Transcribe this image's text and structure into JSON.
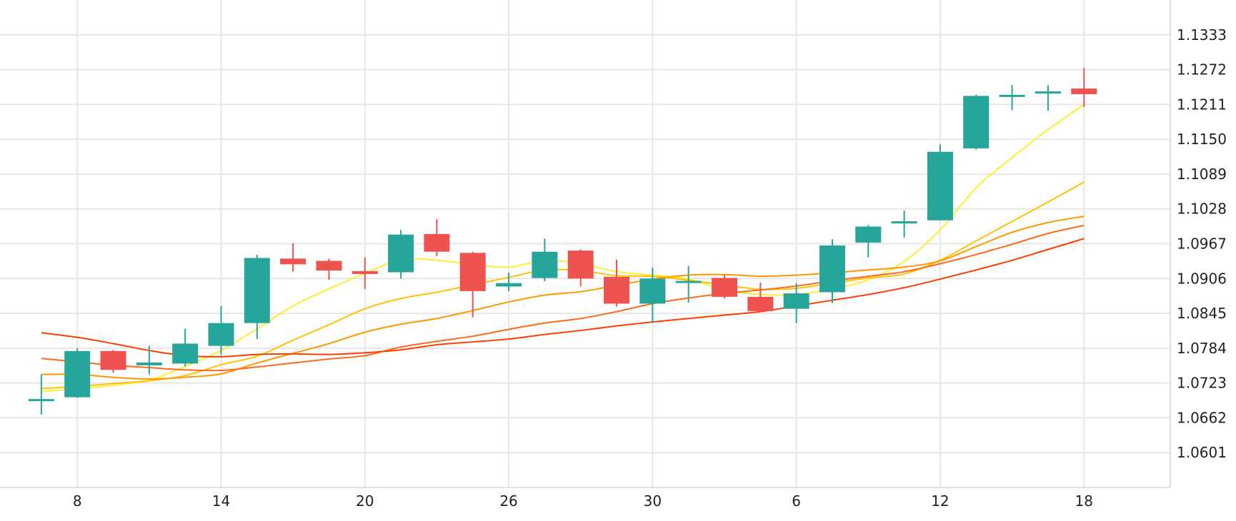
{
  "chart_data": {
    "type": "candlestick",
    "title": "",
    "xlabel": "",
    "ylabel": "",
    "grid": true,
    "legend": "none",
    "x_ticks": [
      {
        "label": "8",
        "at": 1
      },
      {
        "label": "14",
        "at": 5
      },
      {
        "label": "20",
        "at": 9
      },
      {
        "label": "26",
        "at": 13
      },
      {
        "label": "30",
        "at": 17
      },
      {
        "label": "6",
        "at": 21
      },
      {
        "label": "12",
        "at": 25
      },
      {
        "label": "18",
        "at": 29
      }
    ],
    "x_range": [
      -1.15,
      31.4
    ],
    "y_ticks": [
      "1.0601",
      "1.0662",
      "1.0723",
      "1.0784",
      "1.0845",
      "1.0906",
      "1.0967",
      "1.1028",
      "1.1089",
      "1.1150",
      "1.1211",
      "1.1272",
      "1.1333"
    ],
    "y_range": [
      1.054,
      1.1394
    ],
    "up_color": "#26a69a",
    "down_color": "#ef5350",
    "candles": [
      {
        "o": 1.0693,
        "h": 1.0738,
        "l": 1.0668,
        "c": 1.0693
      },
      {
        "o": 1.0698,
        "h": 1.0784,
        "l": 1.0697,
        "c": 1.0779
      },
      {
        "o": 1.0779,
        "h": 1.0781,
        "l": 1.0741,
        "c": 1.0746
      },
      {
        "o": 1.0754,
        "h": 1.0788,
        "l": 1.0738,
        "c": 1.0759
      },
      {
        "o": 1.0757,
        "h": 1.0818,
        "l": 1.0752,
        "c": 1.0792
      },
      {
        "o": 1.0788,
        "h": 1.0858,
        "l": 1.0772,
        "c": 1.0828
      },
      {
        "o": 1.0828,
        "h": 1.0948,
        "l": 1.08,
        "c": 1.0942
      },
      {
        "o": 1.0941,
        "h": 1.0968,
        "l": 1.0918,
        "c": 1.0931
      },
      {
        "o": 1.0937,
        "h": 1.0941,
        "l": 1.0904,
        "c": 1.092
      },
      {
        "o": 1.0919,
        "h": 1.0943,
        "l": 1.0888,
        "c": 1.0914
      },
      {
        "o": 1.0917,
        "h": 1.0991,
        "l": 1.0906,
        "c": 1.0983
      },
      {
        "o": 1.0984,
        "h": 1.101,
        "l": 1.0945,
        "c": 1.0953
      },
      {
        "o": 1.0951,
        "h": 1.0953,
        "l": 1.0838,
        "c": 1.0884
      },
      {
        "o": 1.0892,
        "h": 1.0916,
        "l": 1.0884,
        "c": 1.0898
      },
      {
        "o": 1.0907,
        "h": 1.0976,
        "l": 1.0901,
        "c": 1.0953
      },
      {
        "o": 1.0955,
        "h": 1.0957,
        "l": 1.0892,
        "c": 1.0906
      },
      {
        "o": 1.0909,
        "h": 1.0939,
        "l": 1.0857,
        "c": 1.0862
      },
      {
        "o": 1.0862,
        "h": 1.0925,
        "l": 1.0828,
        "c": 1.0906
      },
      {
        "o": 1.09,
        "h": 1.0928,
        "l": 1.0864,
        "c": 1.09
      },
      {
        "o": 1.0907,
        "h": 1.0913,
        "l": 1.0871,
        "c": 1.0874
      },
      {
        "o": 1.0874,
        "h": 1.0899,
        "l": 1.0848,
        "c": 1.0849
      },
      {
        "o": 1.0853,
        "h": 1.0898,
        "l": 1.0828,
        "c": 1.088
      },
      {
        "o": 1.0882,
        "h": 1.0975,
        "l": 1.0863,
        "c": 1.0964
      },
      {
        "o": 1.0969,
        "h": 1.1,
        "l": 1.0943,
        "c": 1.0997
      },
      {
        "o": 1.1003,
        "h": 1.1025,
        "l": 1.0978,
        "c": 1.1006
      },
      {
        "o": 1.1008,
        "h": 1.1141,
        "l": 1.1008,
        "c": 1.1128
      },
      {
        "o": 1.1134,
        "h": 1.1228,
        "l": 1.1132,
        "c": 1.1226
      },
      {
        "o": 1.1226,
        "h": 1.1245,
        "l": 1.1201,
        "c": 1.1226
      },
      {
        "o": 1.1232,
        "h": 1.1245,
        "l": 1.12,
        "c": 1.1232
      },
      {
        "o": 1.1239,
        "h": 1.1275,
        "l": 1.1207,
        "c": 1.1229
      }
    ],
    "moving_averages": [
      {
        "color": "#ffee33",
        "values": [
          1.0708,
          1.0713,
          1.0719,
          1.0728,
          1.0752,
          1.078,
          1.0818,
          1.0858,
          1.0888,
          1.0915,
          1.0939,
          1.0938,
          1.0931,
          1.0926,
          1.0938,
          1.0932,
          1.0918,
          1.0912,
          1.0905,
          1.0886,
          1.0878,
          1.0878,
          1.0888,
          1.0904,
          1.0936,
          1.0991,
          1.1065,
          1.1118,
          1.1167,
          1.1211
        ]
      },
      {
        "color": "#ffc107",
        "values": [
          1.0713,
          1.0717,
          1.0722,
          1.0727,
          1.0736,
          1.0755,
          1.077,
          1.0798,
          1.0825,
          1.0853,
          1.0871,
          1.0882,
          1.0895,
          1.0908,
          1.0921,
          1.092,
          1.0911,
          1.091,
          1.0903,
          1.0895,
          1.0887,
          1.0889,
          1.0898,
          1.0907,
          1.0914,
          1.0938,
          1.0972,
          1.1006,
          1.104,
          1.1075
        ]
      },
      {
        "color": "#ff9800",
        "values": [
          1.0738,
          1.0738,
          1.0733,
          1.073,
          1.0733,
          1.0739,
          1.0758,
          1.0775,
          1.0792,
          1.0812,
          1.0826,
          1.0836,
          1.085,
          1.0865,
          1.0877,
          1.0883,
          1.0894,
          1.0905,
          1.0912,
          1.0913,
          1.091,
          1.0912,
          1.0916,
          1.0921,
          1.0926,
          1.0937,
          1.0962,
          1.0987,
          1.1004,
          1.1015
        ]
      },
      {
        "color": "#ff6a1a",
        "values": [
          1.0766,
          1.076,
          1.0754,
          1.075,
          1.0746,
          1.0745,
          1.0751,
          1.0758,
          1.0765,
          1.0771,
          1.0786,
          1.0796,
          1.0805,
          1.0817,
          1.0828,
          1.0836,
          1.0848,
          1.0862,
          1.0872,
          1.088,
          1.0886,
          1.0893,
          1.0902,
          1.091,
          1.0918,
          1.0932,
          1.0948,
          1.0966,
          1.0985,
          1.0999
        ]
      },
      {
        "color": "#ff3d00",
        "values": [
          1.0811,
          1.0803,
          1.0792,
          1.078,
          1.0771,
          1.0769,
          1.0773,
          1.0774,
          1.0773,
          1.0776,
          1.0781,
          1.079,
          1.0795,
          1.08,
          1.0808,
          1.0815,
          1.0823,
          1.083,
          1.0836,
          1.0842,
          1.0848,
          1.0858,
          1.0868,
          1.0878,
          1.089,
          1.0905,
          1.0921,
          1.0938,
          1.0957,
          1.0976
        ]
      }
    ]
  }
}
